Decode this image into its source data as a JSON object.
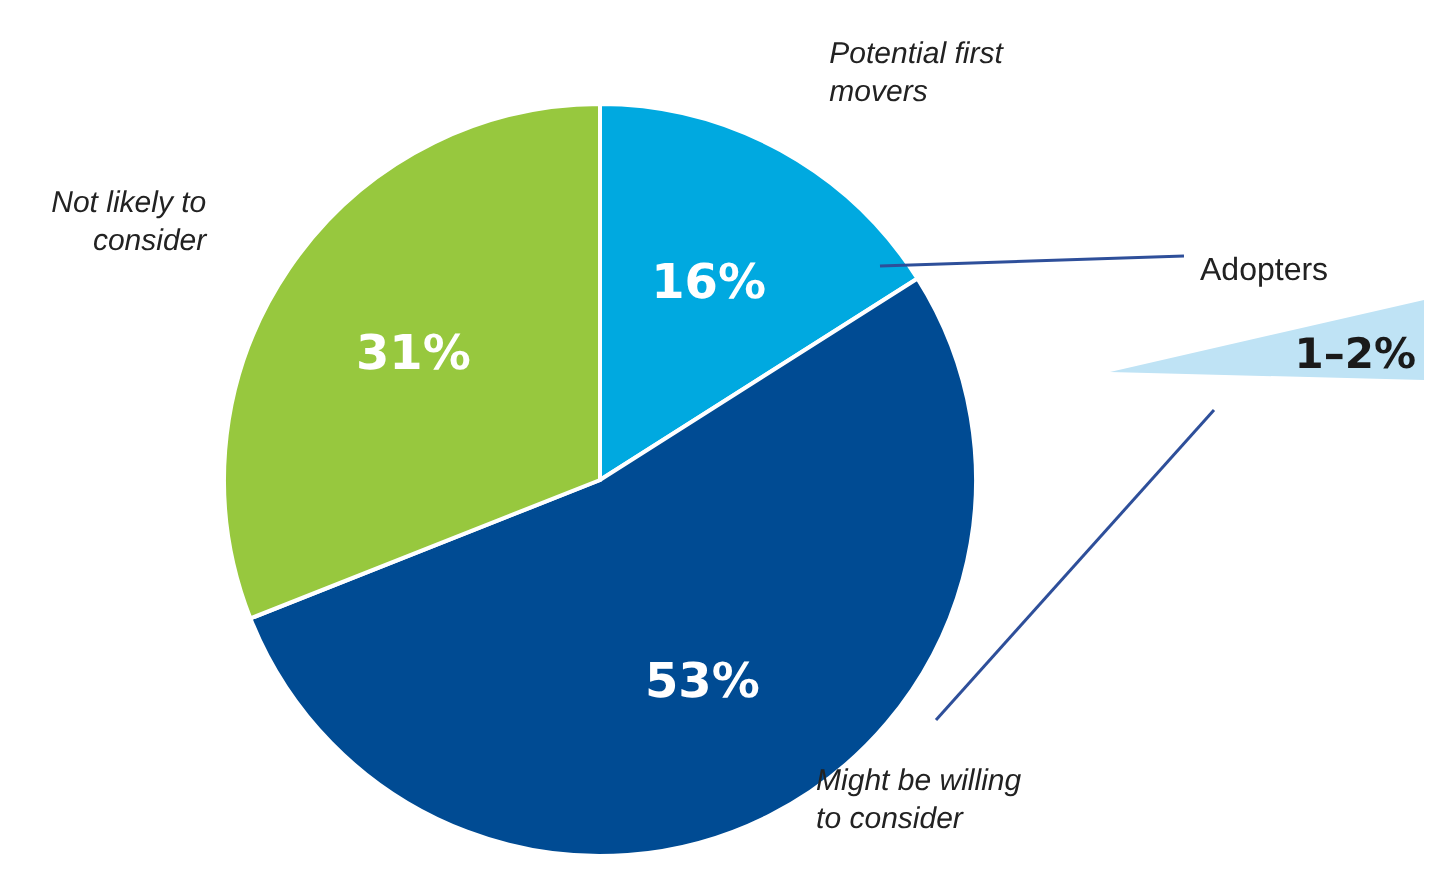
{
  "chart_data": {
    "type": "pie",
    "categories": [
      "Potential first movers",
      "Might be willing to consider",
      "Not likely to consider"
    ],
    "values": [
      16,
      53,
      31
    ],
    "colors": [
      "#00a9e0",
      "#004b93",
      "#97c83e"
    ],
    "value_labels": [
      "16%",
      "53%",
      "31%"
    ],
    "annotations": [
      "Adopters",
      "1–2%"
    ]
  }
}
